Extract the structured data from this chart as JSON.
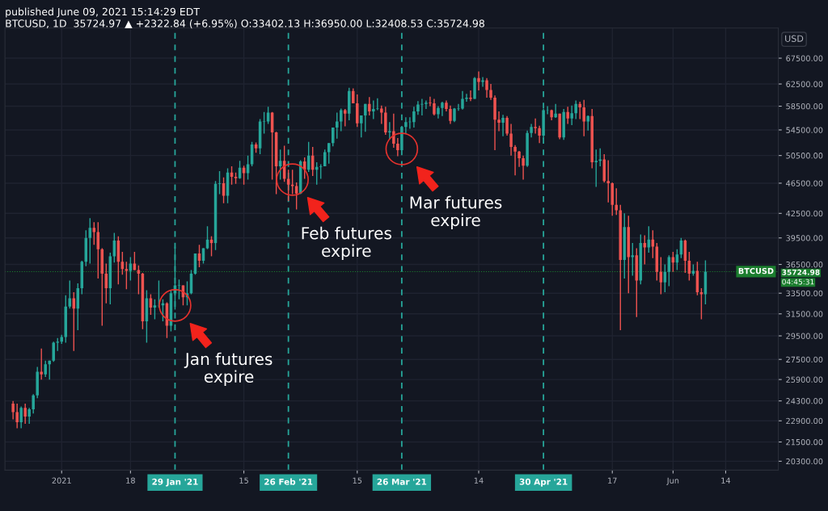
{
  "chart_data": {
    "type": "candlestick",
    "title": "published June 09, 2021 15:14:29 EDT",
    "subtitle": "BTCUSD, 1D  35724.97 ▲ +2322.84 (+6.95%) O:33402.13 H:36950.00 L:32408.53 C:35724.98",
    "ylabel": "USD",
    "x": [
      "2020-12-20",
      "2020-12-21",
      "2020-12-22",
      "2020-12-23",
      "2020-12-24",
      "2020-12-25",
      "2020-12-26",
      "2020-12-27",
      "2020-12-28",
      "2020-12-29",
      "2020-12-30",
      "2020-12-31",
      "2021-01-01",
      "2021-01-02",
      "2021-01-03",
      "2021-01-04",
      "2021-01-05",
      "2021-01-06",
      "2021-01-07",
      "2021-01-08",
      "2021-01-09",
      "2021-01-10",
      "2021-01-11",
      "2021-01-12",
      "2021-01-13",
      "2021-01-14",
      "2021-01-15",
      "2021-01-16",
      "2021-01-17",
      "2021-01-18",
      "2021-01-19",
      "2021-01-20",
      "2021-01-21",
      "2021-01-22",
      "2021-01-23",
      "2021-01-24",
      "2021-01-25",
      "2021-01-26",
      "2021-01-27",
      "2021-01-28",
      "2021-01-29",
      "2021-01-30",
      "2021-01-31",
      "2021-02-01",
      "2021-02-02",
      "2021-02-03",
      "2021-02-04",
      "2021-02-05",
      "2021-02-06",
      "2021-02-07",
      "2021-02-08",
      "2021-02-09",
      "2021-02-10",
      "2021-02-11",
      "2021-02-12",
      "2021-02-13",
      "2021-02-14",
      "2021-02-15",
      "2021-02-16",
      "2021-02-17",
      "2021-02-18",
      "2021-02-19",
      "2021-02-20",
      "2021-02-21",
      "2021-02-22",
      "2021-02-23",
      "2021-02-24",
      "2021-02-25",
      "2021-02-26",
      "2021-02-27",
      "2021-02-28",
      "2021-03-01",
      "2021-03-02",
      "2021-03-03",
      "2021-03-04",
      "2021-03-05",
      "2021-03-06",
      "2021-03-07",
      "2021-03-08",
      "2021-03-09",
      "2021-03-10",
      "2021-03-11",
      "2021-03-12",
      "2021-03-13",
      "2021-03-14",
      "2021-03-15",
      "2021-03-16",
      "2021-03-17",
      "2021-03-18",
      "2021-03-19",
      "2021-03-20",
      "2021-03-21",
      "2021-03-22",
      "2021-03-23",
      "2021-03-24",
      "2021-03-25",
      "2021-03-26",
      "2021-03-27",
      "2021-03-28",
      "2021-03-29",
      "2021-03-30",
      "2021-03-31",
      "2021-04-01",
      "2021-04-02",
      "2021-04-03",
      "2021-04-04",
      "2021-04-05",
      "2021-04-06",
      "2021-04-07",
      "2021-04-08",
      "2021-04-09",
      "2021-04-10",
      "2021-04-11",
      "2021-04-12",
      "2021-04-13",
      "2021-04-14",
      "2021-04-15",
      "2021-04-16",
      "2021-04-17",
      "2021-04-18",
      "2021-04-19",
      "2021-04-20",
      "2021-04-21",
      "2021-04-22",
      "2021-04-23",
      "2021-04-24",
      "2021-04-25",
      "2021-04-26",
      "2021-04-27",
      "2021-04-28",
      "2021-04-29",
      "2021-04-30",
      "2021-05-01",
      "2021-05-02",
      "2021-05-03",
      "2021-05-04",
      "2021-05-05",
      "2021-05-06",
      "2021-05-07",
      "2021-05-08",
      "2021-05-09",
      "2021-05-10",
      "2021-05-11",
      "2021-05-12",
      "2021-05-13",
      "2021-05-14",
      "2021-05-15",
      "2021-05-16",
      "2021-05-17",
      "2021-05-18",
      "2021-05-19",
      "2021-05-20",
      "2021-05-21",
      "2021-05-22",
      "2021-05-23",
      "2021-05-24",
      "2021-05-25",
      "2021-05-26",
      "2021-05-27",
      "2021-05-28",
      "2021-05-29",
      "2021-05-30",
      "2021-05-31",
      "2021-06-01",
      "2021-06-02",
      "2021-06-03",
      "2021-06-04",
      "2021-06-05",
      "2021-06-06",
      "2021-06-07",
      "2021-06-08",
      "2021-06-09"
    ],
    "series": [
      {
        "colors": [
          "#ef5350",
          "#ef5350",
          "#26a69a",
          "#ef5350",
          "#26a69a",
          "#26a69a",
          "#26a69a",
          "#ef5350",
          "#26a69a",
          "#26a69a",
          "#26a69a",
          "#26a69a",
          "#26a69a",
          "#26a69a",
          "#26a69a",
          "#ef5350",
          "#26a69a",
          "#26a69a",
          "#26a69a",
          "#26a69a",
          "#ef5350",
          "#ef5350",
          "#ef5350",
          "#ef5350",
          "#26a69a",
          "#26a69a",
          "#ef5350",
          "#ef5350",
          "#ef5350",
          "#26a69a",
          "#ef5350",
          "#ef5350",
          "#ef5350",
          "#26a69a",
          "#ef5350",
          "#26a69a",
          "#26a69a",
          "#26a69a",
          "#ef5350",
          "#26a69a",
          "#26a69a",
          "#26a69a",
          "#ef5350",
          "#26a69a",
          "#26a69a",
          "#26a69a",
          "#ef5350",
          "#26a69a",
          "#26a69a",
          "#ef5350",
          "#26a69a",
          "#26a69a",
          "#ef5350",
          "#26a69a",
          "#ef5350",
          "#ef5350",
          "#26a69a",
          "#ef5350",
          "#26a69a",
          "#26a69a",
          "#ef5350",
          "#26a69a",
          "#26a69a",
          "#26a69a",
          "#ef5350",
          "#ef5350",
          "#26a69a",
          "#ef5350",
          "#ef5350",
          "#ef5350",
          "#ef5350",
          "#26a69a",
          "#ef5350",
          "#26a69a",
          "#ef5350",
          "#26a69a",
          "#26a69a",
          "#26a69a",
          "#26a69a",
          "#26a69a",
          "#26a69a",
          "#26a69a",
          "#ef5350",
          "#26a69a",
          "#ef5350",
          "#ef5350",
          "#26a69a",
          "#26a69a",
          "#ef5350",
          "#26a69a",
          "#26a69a",
          "#ef5350",
          "#ef5350",
          "#26a69a",
          "#ef5350",
          "#ef5350",
          "#26a69a",
          "#26a69a",
          "#26a69a",
          "#26a69a",
          "#26a69a",
          "#26a69a",
          "#26a69a",
          "#ef5350",
          "#ef5350",
          "#26a69a",
          "#26a69a",
          "#ef5350",
          "#ef5350",
          "#26a69a",
          "#26a69a",
          "#26a69a",
          "#26a69a",
          "#ef5350",
          "#26a69a",
          "#ef5350",
          "#26a69a",
          "#ef5350",
          "#ef5350",
          "#ef5350",
          "#ef5350",
          "#26a69a",
          "#ef5350",
          "#ef5350",
          "#ef5350",
          "#ef5350",
          "#ef5350",
          "#26a69a",
          "#26a69a",
          "#ef5350",
          "#ef5350",
          "#26a69a",
          "#26a69a",
          "#ef5350",
          "#26a69a",
          "#ef5350",
          "#26a69a",
          "#ef5350",
          "#26a69a",
          "#26a69a",
          "#ef5350",
          "#ef5350",
          "#26a69a",
          "#ef5350",
          "#26a69a",
          "#26a69a",
          "#ef5350",
          "#ef5350",
          "#ef5350",
          "#ef5350",
          "#ef5350",
          "#26a69a",
          "#ef5350",
          "#26a69a",
          "#ef5350",
          "#26a69a",
          "#ef5350",
          "#26a69a",
          "#ef5350",
          "#ef5350",
          "#ef5350",
          "#26a69a",
          "#26a69a",
          "#ef5350",
          "#26a69a",
          "#26a69a",
          "#ef5350",
          "#ef5350",
          "#26a69a",
          "#ef5350",
          "#ef5350",
          "#26a69a"
        ],
        "ohlc": [
          [
            24100,
            24300,
            23000,
            23500
          ],
          [
            23500,
            24100,
            22400,
            22800
          ],
          [
            22800,
            23900,
            22400,
            23800
          ],
          [
            23800,
            24100,
            22700,
            23200
          ],
          [
            23200,
            23800,
            22700,
            23700
          ],
          [
            23700,
            24800,
            23400,
            24700
          ],
          [
            24700,
            26900,
            24500,
            26500
          ],
          [
            26500,
            28400,
            25900,
            26300
          ],
          [
            26300,
            27400,
            26100,
            27100
          ],
          [
            27100,
            27400,
            25900,
            27400
          ],
          [
            27400,
            29000,
            27300,
            28900
          ],
          [
            28900,
            29300,
            28200,
            29000
          ],
          [
            29000,
            29600,
            28800,
            29400
          ],
          [
            29400,
            33300,
            28900,
            32200
          ],
          [
            32200,
            34800,
            32000,
            33000
          ],
          [
            33000,
            33600,
            28200,
            32000
          ],
          [
            32000,
            34500,
            30000,
            34000
          ],
          [
            34000,
            36900,
            33400,
            36800
          ],
          [
            36800,
            40400,
            36300,
            39500
          ],
          [
            39500,
            41900,
            36600,
            40700
          ],
          [
            40700,
            41400,
            38700,
            40200
          ],
          [
            40200,
            41400,
            35000,
            38200
          ],
          [
            38200,
            38300,
            30400,
            35500
          ],
          [
            35500,
            36600,
            32500,
            34000
          ],
          [
            34000,
            37800,
            32400,
            37400
          ],
          [
            37400,
            40100,
            36700,
            39200
          ],
          [
            39200,
            39700,
            34400,
            36800
          ],
          [
            36800,
            37900,
            35400,
            36000
          ],
          [
            36000,
            36800,
            33900,
            35800
          ],
          [
            35800,
            37300,
            34800,
            36600
          ],
          [
            36600,
            37900,
            35900,
            35900
          ],
          [
            35900,
            36400,
            33400,
            35500
          ],
          [
            35500,
            35600,
            30100,
            30800
          ],
          [
            30800,
            33800,
            28900,
            33000
          ],
          [
            33000,
            33400,
            31400,
            32100
          ],
          [
            32100,
            32900,
            31000,
            32300
          ],
          [
            32300,
            34800,
            32100,
            32300
          ],
          [
            32300,
            32900,
            30800,
            32500
          ],
          [
            32500,
            32600,
            29300,
            30400
          ],
          [
            30400,
            33800,
            29900,
            33500
          ],
          [
            33500,
            38500,
            31900,
            34300
          ],
          [
            34300,
            34900,
            32900,
            34300
          ],
          [
            34300,
            34300,
            32300,
            33100
          ],
          [
            33100,
            34700,
            32300,
            33500
          ],
          [
            33500,
            35900,
            33400,
            35500
          ],
          [
            35500,
            37700,
            35400,
            37700
          ],
          [
            37700,
            38700,
            36200,
            36900
          ],
          [
            36900,
            38300,
            36600,
            38300
          ],
          [
            38300,
            40900,
            38200,
            39300
          ],
          [
            39300,
            39700,
            37400,
            38900
          ],
          [
            38900,
            46800,
            38100,
            46400
          ],
          [
            46400,
            48200,
            45000,
            46500
          ],
          [
            46500,
            47300,
            43800,
            44800
          ],
          [
            44800,
            48600,
            43800,
            48000
          ],
          [
            48000,
            48900,
            46300,
            47400
          ],
          [
            47400,
            48000,
            46400,
            47200
          ],
          [
            47200,
            49700,
            47100,
            48700
          ],
          [
            48700,
            49000,
            46300,
            47900
          ],
          [
            47900,
            50500,
            47000,
            49200
          ],
          [
            49200,
            52600,
            48900,
            52200
          ],
          [
            52200,
            52500,
            50900,
            51600
          ],
          [
            51600,
            56300,
            50700,
            55900
          ],
          [
            55900,
            57500,
            53900,
            55900
          ],
          [
            55900,
            58400,
            55500,
            57400
          ],
          [
            57400,
            57500,
            47000,
            54100
          ],
          [
            54100,
            54200,
            45000,
            48900
          ],
          [
            48900,
            51400,
            47000,
            49700
          ],
          [
            49700,
            52000,
            46700,
            47100
          ],
          [
            47100,
            48400,
            44100,
            46300
          ],
          [
            46300,
            48400,
            45000,
            46100
          ],
          [
            46100,
            46600,
            43000,
            45100
          ],
          [
            45100,
            49800,
            45000,
            49600
          ],
          [
            49600,
            50200,
            47100,
            48400
          ],
          [
            48400,
            52600,
            48100,
            50500
          ],
          [
            50500,
            51800,
            47500,
            48400
          ],
          [
            48400,
            49500,
            46300,
            48800
          ],
          [
            48800,
            49200,
            47100,
            48900
          ],
          [
            48900,
            51400,
            48900,
            51000
          ],
          [
            51000,
            52400,
            49300,
            52400
          ],
          [
            52400,
            54900,
            51900,
            54900
          ],
          [
            54900,
            57400,
            53100,
            55900
          ],
          [
            55900,
            58100,
            54300,
            57800
          ],
          [
            57800,
            58000,
            55100,
            57200
          ],
          [
            57200,
            61800,
            56100,
            61200
          ],
          [
            61200,
            61700,
            59000,
            59000
          ],
          [
            59000,
            60600,
            55000,
            55600
          ],
          [
            55600,
            56900,
            53300,
            56900
          ],
          [
            56900,
            58900,
            54200,
            58900
          ],
          [
            58900,
            60100,
            56900,
            57600
          ],
          [
            57600,
            59500,
            56300,
            58000
          ],
          [
            58000,
            59900,
            57800,
            58100
          ],
          [
            58100,
            58600,
            55500,
            57400
          ],
          [
            57400,
            58400,
            53700,
            54100
          ],
          [
            54100,
            55800,
            53000,
            54300
          ],
          [
            54300,
            57200,
            51700,
            52300
          ],
          [
            52300,
            53200,
            50400,
            51300
          ],
          [
            51300,
            55100,
            51300,
            55000
          ],
          [
            55000,
            56600,
            53900,
            55800
          ],
          [
            55800,
            56600,
            54700,
            55800
          ],
          [
            55800,
            58400,
            54900,
            57600
          ],
          [
            57600,
            59400,
            57000,
            58800
          ],
          [
            58800,
            59800,
            56900,
            58900
          ],
          [
            58900,
            59500,
            58000,
            59100
          ],
          [
            59100,
            60200,
            58500,
            59000
          ],
          [
            59000,
            59800,
            56900,
            57100
          ],
          [
            57100,
            58500,
            56400,
            58200
          ],
          [
            58200,
            59300,
            56800,
            59100
          ],
          [
            59100,
            59500,
            57600,
            58000
          ],
          [
            58000,
            58600,
            55500,
            56000
          ],
          [
            56000,
            58200,
            55800,
            58100
          ],
          [
            58100,
            58900,
            57700,
            58100
          ],
          [
            58100,
            61200,
            57900,
            59800
          ],
          [
            59800,
            60700,
            59300,
            60000
          ],
          [
            60000,
            61300,
            59400,
            59800
          ],
          [
            59800,
            63800,
            59800,
            63600
          ],
          [
            63600,
            64900,
            61300,
            62900
          ],
          [
            62900,
            63800,
            62000,
            63200
          ],
          [
            63200,
            63600,
            60000,
            61400
          ],
          [
            61400,
            62500,
            59600,
            60000
          ],
          [
            60000,
            60400,
            51300,
            56200
          ],
          [
            56200,
            57600,
            54300,
            55700
          ],
          [
            55700,
            57000,
            53500,
            56500
          ],
          [
            56500,
            56800,
            53600,
            53900
          ],
          [
            53900,
            55500,
            50500,
            51800
          ],
          [
            51800,
            52100,
            47600,
            51100
          ],
          [
            51100,
            51200,
            48800,
            50100
          ],
          [
            50100,
            50500,
            47000,
            49000
          ],
          [
            49000,
            54400,
            48800,
            54000
          ],
          [
            54000,
            55500,
            53300,
            55000
          ],
          [
            55000,
            56400,
            53900,
            54800
          ],
          [
            54800,
            55200,
            52400,
            53600
          ],
          [
            53600,
            58000,
            53100,
            57800
          ],
          [
            57800,
            58500,
            57100,
            57800
          ],
          [
            57800,
            57900,
            56100,
            56600
          ],
          [
            56600,
            58900,
            56500,
            57200
          ],
          [
            57200,
            57200,
            53000,
            53300
          ],
          [
            53300,
            58000,
            52900,
            57500
          ],
          [
            57500,
            58400,
            55500,
            56400
          ],
          [
            56400,
            58600,
            55300,
            57300
          ],
          [
            57300,
            59500,
            56300,
            58900
          ],
          [
            58900,
            59300,
            56300,
            58300
          ],
          [
            58300,
            59600,
            53500,
            55900
          ],
          [
            55900,
            56900,
            54400,
            56800
          ],
          [
            56800,
            58000,
            48600,
            49500
          ],
          [
            49500,
            51400,
            46000,
            49700
          ],
          [
            49700,
            51600,
            48900,
            49900
          ],
          [
            49900,
            50700,
            46600,
            46800
          ],
          [
            46800,
            49800,
            43900,
            46500
          ],
          [
            46500,
            46600,
            42200,
            43600
          ],
          [
            43600,
            45800,
            42300,
            42900
          ],
          [
            42900,
            43600,
            30000,
            37000
          ],
          [
            37000,
            42500,
            35000,
            40800
          ],
          [
            40800,
            42200,
            33500,
            37300
          ],
          [
            37300,
            38900,
            35300,
            37500
          ],
          [
            37500,
            38300,
            31200,
            34800
          ],
          [
            34800,
            39900,
            34400,
            38900
          ],
          [
            38900,
            39800,
            36500,
            38400
          ],
          [
            38400,
            40900,
            37800,
            39300
          ],
          [
            39300,
            40400,
            37200,
            38500
          ],
          [
            38500,
            38900,
            34800,
            35700
          ],
          [
            35700,
            37300,
            33400,
            34600
          ],
          [
            34600,
            36500,
            33600,
            35700
          ],
          [
            35700,
            37500,
            34200,
            37300
          ],
          [
            37300,
            37900,
            35700,
            36700
          ],
          [
            36700,
            38200,
            35900,
            37600
          ],
          [
            37600,
            39500,
            37200,
            39200
          ],
          [
            39200,
            39300,
            35600,
            36900
          ],
          [
            36900,
            37900,
            34800,
            35500
          ],
          [
            35500,
            36500,
            35300,
            35800
          ],
          [
            35800,
            36800,
            33300,
            33600
          ],
          [
            33600,
            34000,
            31000,
            33400
          ],
          [
            33402.13,
            36950,
            32408.53,
            35724.98
          ]
        ]
      }
    ],
    "log": true,
    "ylim": [
      19770,
      73830
    ],
    "yticks": [
      {
        "value": 20300,
        "label": "20300.00"
      },
      {
        "value": 21500,
        "label": "21500.00"
      },
      {
        "value": 22900,
        "label": "22900.00"
      },
      {
        "value": 24300,
        "label": "24300.00"
      },
      {
        "value": 25900,
        "label": "25900.00"
      },
      {
        "value": 27500,
        "label": "27500.00"
      },
      {
        "value": 29500,
        "label": "29500.00"
      },
      {
        "value": 31500,
        "label": "31500.00"
      },
      {
        "value": 33500,
        "label": "33500.00"
      },
      {
        "value": 36500,
        "label": "36500.00"
      },
      {
        "value": 39500,
        "label": "39500.00"
      },
      {
        "value": 42500,
        "label": "42500.00"
      },
      {
        "value": 46500,
        "label": "46500.00"
      },
      {
        "value": 50500,
        "label": "50500.00"
      },
      {
        "value": 54500,
        "label": "54500.00"
      },
      {
        "value": 58500,
        "label": "58500.00"
      },
      {
        "value": 62500,
        "label": "62500.00"
      },
      {
        "value": 67500,
        "label": "67500.00"
      }
    ],
    "xlim": [
      "2020-12-18",
      "2021-06-27"
    ],
    "xticks": [
      {
        "value": "2021-01-01",
        "label": "2021"
      },
      {
        "value": "2021-01-18",
        "label": "18"
      },
      {
        "value": "2021-02-15",
        "label": "15"
      },
      {
        "value": "2021-03-15",
        "label": "15"
      },
      {
        "value": "2021-04-14",
        "label": "14"
      },
      {
        "value": "2021-05-17",
        "label": "17"
      },
      {
        "value": "2021-06-01",
        "label": "Jun"
      },
      {
        "value": "2021-06-14",
        "label": "14"
      }
    ],
    "grid": true,
    "ref_lines": [
      {
        "axis": "x",
        "value": "2021-01-29",
        "label": "29 Jan '21",
        "color": "#26a69a",
        "line_style": "dashed"
      },
      {
        "axis": "x",
        "value": "2021-02-26",
        "label": "26 Feb '21",
        "color": "#26a69a",
        "line_style": "dashed"
      },
      {
        "axis": "x",
        "value": "2021-03-26",
        "label": "26 Mar '21",
        "color": "#26a69a",
        "line_style": "dashed"
      },
      {
        "axis": "x",
        "value": "2021-04-30",
        "label": "30 Apr '21",
        "color": "#26a69a",
        "line_style": "dashed"
      },
      {
        "axis": "y",
        "value": 35724.98,
        "label": "35724.98",
        "color": "#1b7d2e",
        "line_style": "dotted"
      }
    ],
    "annotations": [
      {
        "text": "Jan futures\nexpire",
        "x": "2021-01-29",
        "y": 32300
      },
      {
        "text": "Feb futures\nexpire",
        "x": "2021-02-27",
        "y": 47000
      },
      {
        "text": "Mar futures\nexpire",
        "x": "2021-03-26",
        "y": 51500
      },
      "BTCUSD",
      "04:45:31"
    ]
  }
}
